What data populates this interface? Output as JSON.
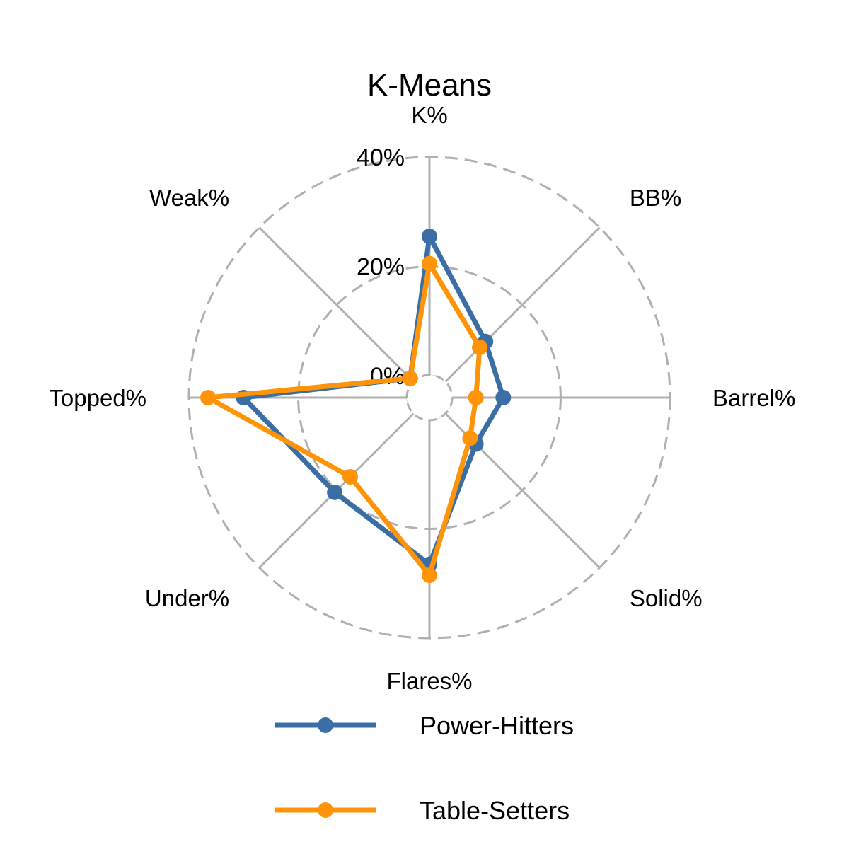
{
  "chart_data": {
    "type": "radar",
    "title": "K-Means",
    "axes": [
      "K%",
      "BB%",
      "Barrel%",
      "Solid%",
      "Flares%",
      "Under%",
      "Topped%",
      "Weak%"
    ],
    "radial_ticks": [
      {
        "value": 0,
        "label": "0%"
      },
      {
        "value": 20,
        "label": "20%"
      },
      {
        "value": 40,
        "label": "40%"
      }
    ],
    "rlim": [
      -4,
      40
    ],
    "grid": true,
    "legend_position": "bottom",
    "series": [
      {
        "name": "Power-Hitters",
        "color": "#3a6ea5",
        "values": [
          25.5,
          10.5,
          9.5,
          8.0,
          26.5,
          20.5,
          30.0,
          1.0
        ]
      },
      {
        "name": "Table-Setters",
        "color": "#ff9408",
        "values": [
          20.5,
          9.0,
          4.5,
          6.5,
          28.5,
          16.5,
          36.5,
          1.0
        ]
      }
    ]
  }
}
